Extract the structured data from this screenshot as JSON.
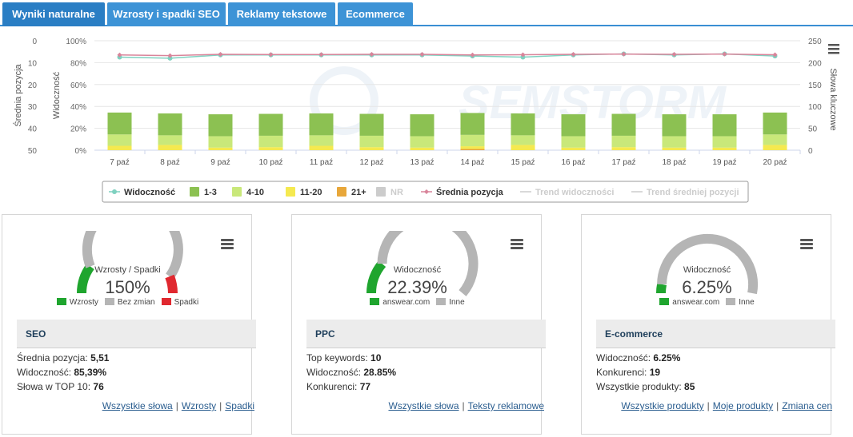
{
  "tabs": [
    {
      "label": "Wyniki naturalne",
      "active": true
    },
    {
      "label": "Wzrosty i spadki SEO",
      "active": false
    },
    {
      "label": "Reklamy tekstowe",
      "active": false
    },
    {
      "label": "Ecommerce",
      "active": false
    }
  ],
  "watermark": "SEMSTORM",
  "colors": {
    "tab_active": "#2a7ec4",
    "tab_inactive": "#3d93d6",
    "bar_1_3": "#8cc152",
    "bar_4_10": "#c9e87a",
    "bar_11_20": "#f5e950",
    "bar_21_plus": "#e8a73a",
    "bar_nr": "#d0d0d0",
    "visibility_line": "#7fd1c0",
    "position_line": "#d9849a",
    "gauge_up": "#1fa52e",
    "gauge_same": "#b5b5b5",
    "gauge_down": "#e0282f"
  },
  "chart_data": {
    "type": "bar",
    "categories": [
      "7 paź",
      "8 paź",
      "9 paź",
      "10 paź",
      "11 paź",
      "12 paź",
      "13 paź",
      "14 paź",
      "15 paź",
      "16 paź",
      "17 paź",
      "18 paź",
      "19 paź",
      "20 paź"
    ],
    "y_left_outer_label": "Średnia pozycja",
    "y_left_outer_ticks": [
      "0",
      "10",
      "20",
      "30",
      "40",
      "50"
    ],
    "y_left_outer_range": [
      0,
      50
    ],
    "y_left_inner_label": "Widoczność",
    "y_left_inner_ticks": [
      "100%",
      "80%",
      "60%",
      "40%",
      "20%",
      "0%"
    ],
    "y_left_inner_range": [
      0,
      100
    ],
    "y_right_label": "Słowa kluczowe",
    "y_right_ticks": [
      "250",
      "200",
      "150",
      "100",
      "50",
      "0"
    ],
    "y_right_range": [
      0,
      250
    ],
    "stacked_series_keywords": [
      {
        "name": "1-3",
        "values": [
          50,
          50,
          50,
          50,
          50,
          50,
          50,
          50,
          50,
          50,
          50,
          50,
          50,
          50
        ]
      },
      {
        "name": "4-10",
        "values": [
          26,
          22,
          26,
          26,
          24,
          26,
          26,
          26,
          22,
          26,
          26,
          26,
          26,
          24
        ]
      },
      {
        "name": "11-20",
        "values": [
          10,
          12,
          6,
          7,
          10,
          7,
          6,
          6,
          12,
          6,
          7,
          6,
          6,
          12
        ]
      },
      {
        "name": "21+",
        "values": [
          0,
          0,
          0,
          0,
          0,
          0,
          0,
          3,
          0,
          0,
          0,
          0,
          0,
          0
        ]
      },
      {
        "name": "NR",
        "values": [
          0,
          0,
          0,
          0,
          0,
          0,
          0,
          0,
          0,
          0,
          0,
          0,
          0,
          0
        ]
      }
    ],
    "line_series": [
      {
        "name": "Widoczność",
        "axis": "visibility",
        "values": [
          85,
          84,
          87,
          87,
          87,
          87,
          87,
          86,
          85,
          87,
          88,
          87,
          88,
          86
        ]
      },
      {
        "name": "Średnia pozycja",
        "axis": "position",
        "values": [
          6.5,
          6.8,
          6.2,
          6.3,
          6.3,
          6.2,
          6.2,
          6.5,
          6.4,
          6.2,
          6.1,
          6.2,
          6.1,
          6.4
        ]
      }
    ],
    "legend": [
      {
        "name": "Widoczność",
        "kind": "line",
        "color": "#7fd1c0",
        "enabled": true
      },
      {
        "name": "1-3",
        "kind": "bar",
        "color": "#8cc152",
        "enabled": true
      },
      {
        "name": "4-10",
        "kind": "bar",
        "color": "#c9e87a",
        "enabled": true
      },
      {
        "name": "11-20",
        "kind": "bar",
        "color": "#f5e950",
        "enabled": true
      },
      {
        "name": "21+",
        "kind": "bar",
        "color": "#e8a73a",
        "enabled": true
      },
      {
        "name": "NR",
        "kind": "bar",
        "color": "#d0d0d0",
        "enabled": false
      },
      {
        "name": "Średnia pozycja",
        "kind": "line",
        "color": "#d9849a",
        "enabled": true
      },
      {
        "name": "Trend widoczności",
        "kind": "line",
        "color": "#cccccc",
        "enabled": false
      },
      {
        "name": "Trend średniej pozycji",
        "kind": "line",
        "color": "#cccccc",
        "enabled": false
      }
    ],
    "legend_placement": "bottom-center",
    "grid": true
  },
  "cards": [
    {
      "gauge_label": "Wzrosty / Spadki",
      "gauge_value": "150%",
      "gauge_segments": [
        {
          "name": "Wzrosty",
          "color": "#1fa52e",
          "fraction": 0.2
        },
        {
          "name": "Bez zmian",
          "color": "#b5b5b5",
          "fraction": 0.68
        },
        {
          "name": "Spadki",
          "color": "#e0282f",
          "fraction": 0.12
        }
      ],
      "legend": [
        "Wzrosty",
        "Bez zmian",
        "Spadki"
      ],
      "section_title": "SEO",
      "stats": [
        {
          "label": "Średnia pozycja:",
          "value": "5,51"
        },
        {
          "label": "Widoczność:",
          "value": "85,39%"
        },
        {
          "label": "Słowa w TOP 10:",
          "value": "76"
        }
      ],
      "links": [
        "Wszystkie słowa",
        "Wzrosty",
        "Spadki"
      ]
    },
    {
      "gauge_label": "Widoczność",
      "gauge_value": "22.39%",
      "gauge_segments": [
        {
          "name": "answear.com",
          "color": "#1fa52e",
          "fraction": 0.2239
        },
        {
          "name": "Inne",
          "color": "#b5b5b5",
          "fraction": 0.7761
        }
      ],
      "legend": [
        "answear.com",
        "Inne"
      ],
      "section_title": "PPC",
      "stats": [
        {
          "label": "Top keywords:",
          "value": "10"
        },
        {
          "label": "Widoczność:",
          "value": "28.85%"
        },
        {
          "label": "Konkurenci:",
          "value": "77"
        }
      ],
      "links": [
        "Wszystkie słowa",
        "Teksty reklamowe"
      ]
    },
    {
      "gauge_label": "Widoczność",
      "gauge_value": "6.25%",
      "gauge_segments": [
        {
          "name": "answear.com",
          "color": "#1fa52e",
          "fraction": 0.0625
        },
        {
          "name": "Inne",
          "color": "#b5b5b5",
          "fraction": 0.9375
        }
      ],
      "legend": [
        "answear.com",
        "Inne"
      ],
      "section_title": "E-commerce",
      "stats": [
        {
          "label": "Widoczność:",
          "value": "6.25%"
        },
        {
          "label": "Konkurenci:",
          "value": "19"
        },
        {
          "label": "Wszystkie produkty:",
          "value": "85"
        }
      ],
      "links": [
        "Wszystkie produkty",
        "Moje produkty",
        "Zmiana cen"
      ]
    }
  ]
}
